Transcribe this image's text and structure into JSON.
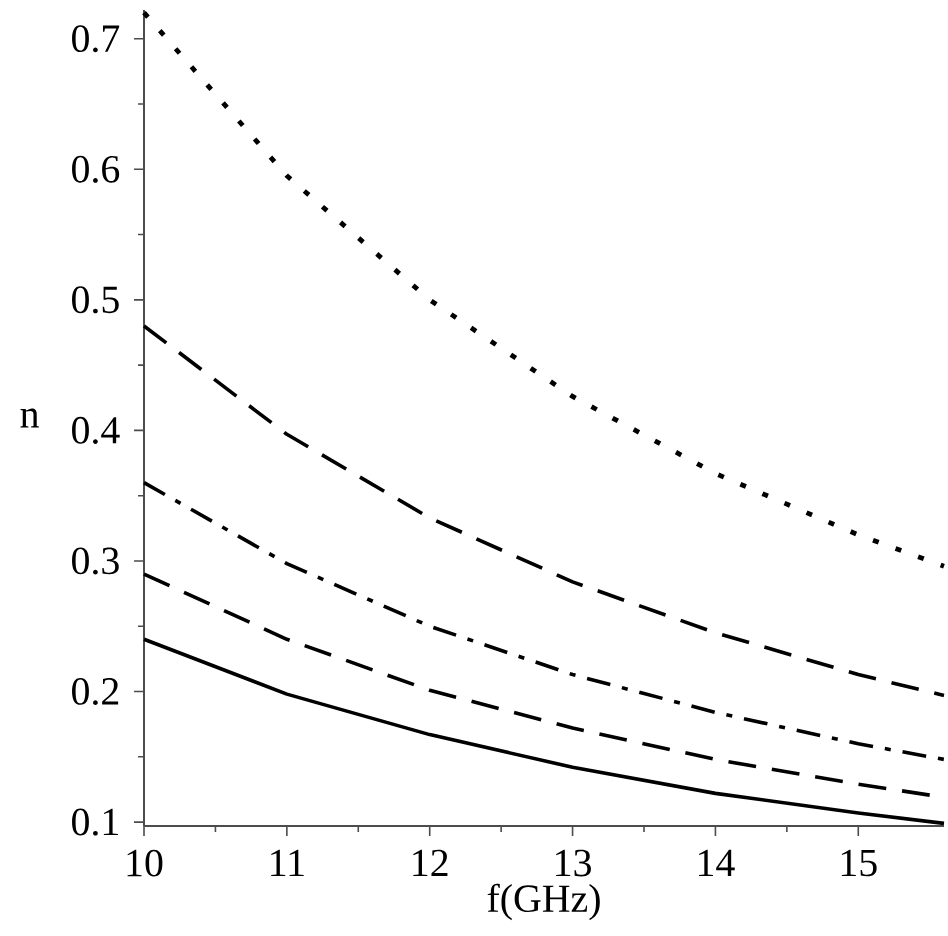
{
  "chart_data": {
    "type": "line",
    "xlabel": "f(GHz)",
    "ylabel": "n",
    "x": [
      10,
      11,
      12,
      13,
      14,
      15,
      15.6
    ],
    "series": [
      {
        "color": "#000000",
        "line_style": "dotted",
        "values": [
          0.72,
          0.595,
          0.5,
          0.426,
          0.367,
          0.32,
          0.296
        ]
      },
      {
        "color": "#000000",
        "line_style": "dashed",
        "values": [
          0.48,
          0.397,
          0.333,
          0.284,
          0.245,
          0.213,
          0.197
        ]
      },
      {
        "color": "#000000",
        "line_style": "dashdot",
        "values": [
          0.36,
          0.298,
          0.25,
          0.213,
          0.184,
          0.16,
          0.148
        ]
      },
      {
        "color": "#000000",
        "line_style": "dashed",
        "values": [
          0.29,
          0.24,
          0.201,
          0.172,
          0.148,
          0.129,
          0.119
        ]
      },
      {
        "color": "#000000",
        "line_style": "solid",
        "values": [
          0.24,
          0.198,
          0.167,
          0.142,
          0.122,
          0.107,
          0.099
        ]
      }
    ],
    "xlim": [
      10,
      15.6
    ],
    "ylim": [
      0.097,
      0.722
    ],
    "xticks": [
      10,
      11,
      12,
      13,
      14,
      15
    ],
    "yticks": [
      0.1,
      0.2,
      0.3,
      0.4,
      0.5,
      0.6,
      0.7
    ],
    "grid": false,
    "marker": "none"
  }
}
